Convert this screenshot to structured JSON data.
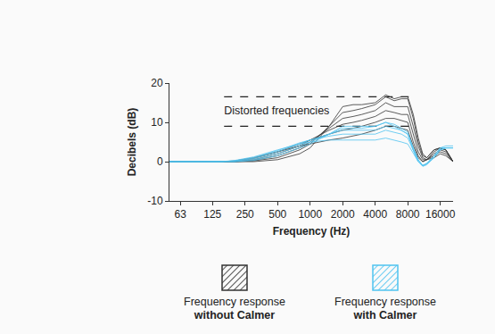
{
  "chart_data": {
    "type": "line",
    "x": [
      50,
      100,
      150,
      200,
      300,
      500,
      800,
      1000,
      1500,
      2000,
      2500,
      3000,
      4000,
      5000,
      6000,
      7000,
      8000,
      9000,
      10000,
      11000,
      12000,
      14000,
      16000,
      18000,
      21000
    ],
    "xlim": [
      50,
      21000
    ],
    "xticks": [
      63,
      125,
      250,
      500,
      1000,
      2000,
      4000,
      8000,
      16000
    ],
    "ylim": [
      -10,
      20
    ],
    "yticks": [
      -10,
      0,
      10,
      20
    ],
    "log": "x",
    "grid": false,
    "legend": "bottom",
    "x_label": "Frequency (Hz)",
    "y_label": "Decibels (dB)",
    "annotations": [
      {
        "text": "Distorted frequencies",
        "x": [
          160,
          8300
        ],
        "y": [
          9,
          16.5
        ],
        "line_style": "dashed"
      }
    ],
    "series": [
      {
        "name": "Frequency response without Calmer",
        "color": "#333333",
        "values": [
          [
            0,
            0,
            0,
            0.2,
            1,
            2.5,
            4,
            4.5,
            5.5,
            6,
            6.5,
            7,
            8,
            9,
            9,
            8.5,
            8,
            4,
            1,
            0,
            0.5,
            1,
            2,
            1.5,
            0
          ],
          [
            0,
            0,
            0,
            0.1,
            0.8,
            2.5,
            4.5,
            5.5,
            7,
            8,
            8.5,
            9,
            10,
            11,
            11,
            10.5,
            10,
            5,
            1.5,
            0,
            0.5,
            1.5,
            2.5,
            2,
            0
          ],
          [
            0,
            0,
            0,
            0,
            0.5,
            2,
            4,
            5.5,
            8,
            9.5,
            10,
            10.5,
            11.5,
            13,
            12.5,
            12,
            12,
            7,
            2.5,
            0.5,
            0.5,
            2,
            3,
            2.5,
            0
          ],
          [
            0,
            0,
            0,
            0,
            0.3,
            1.5,
            3.5,
            5,
            8.5,
            11,
            11.5,
            12,
            13,
            15,
            14,
            14,
            14,
            9,
            4,
            1,
            0.5,
            2.5,
            3.5,
            3,
            0
          ],
          [
            0,
            0,
            0,
            0,
            0.2,
            1,
            3,
            4.5,
            9,
            12.5,
            13,
            13.5,
            14.5,
            16.5,
            15.5,
            16,
            16,
            11,
            5,
            1.5,
            1,
            3,
            3.5,
            3,
            0
          ],
          [
            0,
            0,
            0,
            0,
            0,
            0.5,
            2,
            3.5,
            9,
            14,
            14.5,
            14.5,
            15,
            17,
            16,
            16.5,
            16.5,
            12,
            6,
            2,
            1,
            3,
            3.5,
            3,
            0
          ]
        ]
      },
      {
        "name": "Frequency response with Calmer",
        "color": "#4fc3f0",
        "values": [
          [
            0,
            0,
            0,
            0.3,
            1.2,
            3,
            4.5,
            5,
            5.5,
            5.5,
            5.5,
            5.5,
            5.5,
            6,
            5.5,
            5,
            4.5,
            2,
            0,
            -1,
            -0.5,
            1,
            3,
            3.5,
            3.5
          ],
          [
            0,
            0,
            0,
            0.2,
            1,
            2.8,
            4.8,
            5.5,
            6.5,
            7,
            7,
            7,
            7,
            8,
            7.5,
            7,
            6,
            3,
            0,
            -1,
            -0.5,
            1.5,
            3.5,
            4,
            4
          ],
          [
            0,
            0,
            0,
            0.1,
            0.8,
            2.5,
            4.5,
            5.5,
            7,
            8,
            8,
            8,
            8,
            9,
            8.5,
            8,
            7,
            3.5,
            0.5,
            -1,
            -0.5,
            1.5,
            3.5,
            3.5,
            3.5
          ],
          [
            0,
            0,
            0,
            0,
            0.5,
            2,
            4,
            5,
            7,
            8.5,
            8.5,
            8.5,
            9,
            10,
            9,
            8,
            7,
            3,
            0,
            -1.2,
            -0.8,
            1,
            3,
            3.5,
            3.5
          ],
          [
            0,
            0,
            0,
            0,
            0.3,
            1.5,
            3.5,
            4.5,
            7,
            9,
            9,
            9,
            9,
            10,
            9.5,
            8.5,
            7.5,
            3,
            0.5,
            -1,
            -0.5,
            1,
            3,
            3.5,
            3.5
          ]
        ]
      }
    ]
  }
}
